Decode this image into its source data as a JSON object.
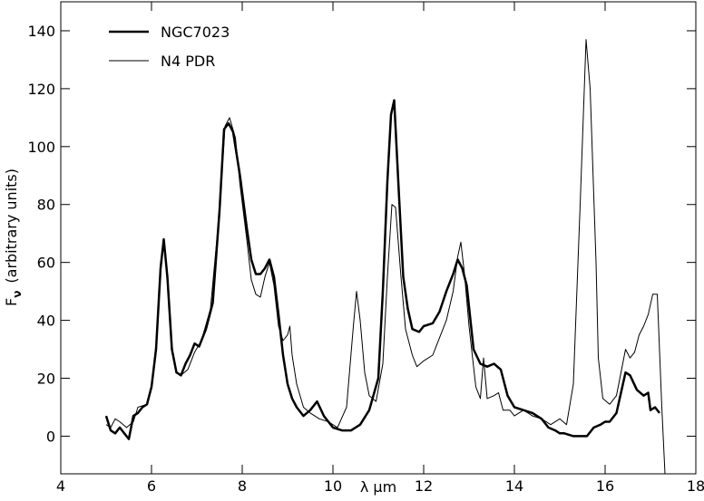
{
  "chart_data": {
    "type": "line",
    "xlabel": "λ μm",
    "ylabel": "F",
    "ylabel_sub": "ν",
    "ylabel_rest": "(arbitrary units)",
    "xlim": [
      4,
      18
    ],
    "xticks": [
      4,
      6,
      8,
      10,
      12,
      14,
      16,
      18
    ],
    "ylim": [
      -13,
      150
    ],
    "yticks": [
      0,
      20,
      40,
      60,
      80,
      100,
      120,
      140
    ],
    "legend": "upper left",
    "series": [
      {
        "name": "NGC7023",
        "color": "#000000",
        "width": 2.5,
        "x": [
          5.0,
          5.1,
          5.2,
          5.3,
          5.4,
          5.5,
          5.6,
          5.7,
          5.8,
          5.9,
          6.0,
          6.1,
          6.2,
          6.27,
          6.35,
          6.45,
          6.55,
          6.65,
          6.75,
          6.85,
          6.95,
          7.05,
          7.2,
          7.35,
          7.5,
          7.6,
          7.7,
          7.8,
          7.95,
          8.1,
          8.2,
          8.3,
          8.4,
          8.5,
          8.6,
          8.7,
          8.8,
          8.9,
          9.0,
          9.1,
          9.2,
          9.35,
          9.5,
          9.65,
          9.8,
          10.0,
          10.2,
          10.4,
          10.6,
          10.8,
          11.0,
          11.1,
          11.2,
          11.28,
          11.35,
          11.45,
          11.55,
          11.65,
          11.75,
          11.9,
          12.0,
          12.2,
          12.35,
          12.5,
          12.65,
          12.75,
          12.85,
          12.95,
          13.1,
          13.25,
          13.4,
          13.55,
          13.7,
          13.85,
          14.0,
          14.2,
          14.4,
          14.6,
          14.75,
          14.9,
          15.0,
          15.1,
          15.3,
          15.45,
          15.6,
          15.75,
          15.9,
          16.0,
          16.1,
          16.25,
          16.35,
          16.45,
          16.55,
          16.7,
          16.85,
          16.95,
          17.0,
          17.1,
          17.2
        ],
        "values": [
          7,
          2,
          1,
          3,
          1,
          -1,
          7,
          8,
          10,
          11,
          17,
          30,
          58,
          68,
          55,
          30,
          22,
          21,
          25,
          28,
          32,
          31,
          37,
          46,
          78,
          106,
          108,
          105,
          90,
          72,
          61,
          56,
          56,
          58,
          61,
          55,
          42,
          28,
          18,
          13,
          10,
          7,
          9,
          12,
          7,
          3,
          2,
          2,
          4,
          9,
          20,
          50,
          88,
          111,
          116,
          85,
          55,
          44,
          37,
          36,
          38,
          39,
          43,
          50,
          56,
          61,
          58,
          52,
          30,
          25,
          24,
          25,
          23,
          14,
          10,
          9,
          8,
          6,
          3,
          2,
          1,
          1,
          0,
          0,
          0,
          3,
          4,
          5,
          5,
          8,
          15,
          22,
          21,
          16,
          14,
          15,
          9,
          10,
          8
        ]
      },
      {
        "name": "N4 PDR",
        "color": "#000000",
        "width": 1,
        "x": [
          5.0,
          5.1,
          5.2,
          5.3,
          5.45,
          5.6,
          5.7,
          5.9,
          6.0,
          6.1,
          6.2,
          6.27,
          6.35,
          6.45,
          6.55,
          6.65,
          6.8,
          6.95,
          7.1,
          7.3,
          7.5,
          7.62,
          7.72,
          7.85,
          7.95,
          8.1,
          8.2,
          8.3,
          8.4,
          8.5,
          8.6,
          8.7,
          8.8,
          8.9,
          9.0,
          9.05,
          9.1,
          9.2,
          9.35,
          9.5,
          9.7,
          9.9,
          10.1,
          10.3,
          10.45,
          10.52,
          10.6,
          10.7,
          10.8,
          10.95,
          11.1,
          11.2,
          11.3,
          11.38,
          11.5,
          11.6,
          11.75,
          11.85,
          12.0,
          12.2,
          12.35,
          12.5,
          12.65,
          12.75,
          12.82,
          12.9,
          13.0,
          13.15,
          13.25,
          13.32,
          13.4,
          13.55,
          13.65,
          13.75,
          13.9,
          14.0,
          14.2,
          14.4,
          14.6,
          14.8,
          15.0,
          15.15,
          15.3,
          15.45,
          15.58,
          15.67,
          15.8,
          15.85,
          15.95,
          16.1,
          16.25,
          16.35,
          16.45,
          16.55,
          16.65,
          16.75,
          16.85,
          16.95,
          17.05,
          17.15,
          17.25,
          17.32
        ],
        "values": [
          4,
          3,
          6,
          5,
          3,
          5,
          10,
          11,
          17,
          32,
          60,
          67,
          54,
          31,
          22,
          21,
          23,
          29,
          33,
          44,
          78,
          107,
          110,
          103,
          87,
          68,
          54,
          49,
          48,
          55,
          60,
          52,
          38,
          33,
          35,
          38,
          28,
          18,
          10,
          8,
          6,
          5,
          3,
          10,
          38,
          50,
          40,
          22,
          14,
          12,
          25,
          55,
          80,
          79,
          55,
          37,
          28,
          24,
          26,
          28,
          34,
          40,
          50,
          62,
          67,
          56,
          38,
          17,
          13,
          27,
          13,
          14,
          15,
          9,
          9,
          7,
          9,
          7,
          6,
          4,
          6,
          4,
          18,
          80,
          137,
          120,
          60,
          27,
          13,
          11,
          14,
          22,
          30,
          27,
          29,
          35,
          38,
          42,
          49,
          49,
          10,
          -13
        ]
      }
    ]
  }
}
